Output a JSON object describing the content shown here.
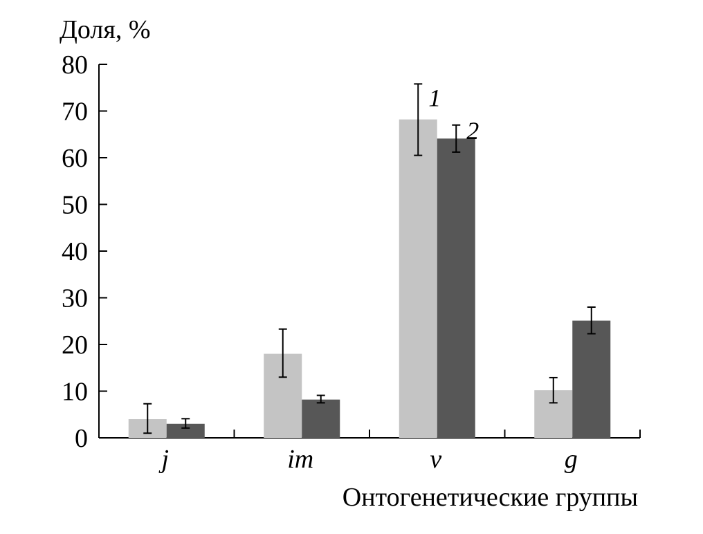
{
  "chart_data": {
    "type": "bar",
    "ylabel": "Доля, %",
    "xlabel": "Онтогенетические группы",
    "categories": [
      "j",
      "im",
      "v",
      "g"
    ],
    "ylim": [
      0,
      80
    ],
    "yticks": [
      0,
      10,
      20,
      30,
      40,
      50,
      60,
      70,
      80
    ],
    "grid": false,
    "series": [
      {
        "name": "1",
        "color": "#c4c4c4",
        "values": [
          4.0,
          18.0,
          68.2,
          10.2
        ],
        "err_low": [
          1.0,
          13.0,
          60.5,
          7.5
        ],
        "err_high": [
          7.3,
          23.3,
          75.8,
          12.9
        ]
      },
      {
        "name": "2",
        "color": "#575757",
        "values": [
          3.0,
          8.2,
          64.1,
          25.1
        ],
        "err_low": [
          2.1,
          7.5,
          61.2,
          22.3
        ],
        "err_high": [
          4.1,
          9.1,
          67.0,
          28.0
        ]
      }
    ]
  }
}
